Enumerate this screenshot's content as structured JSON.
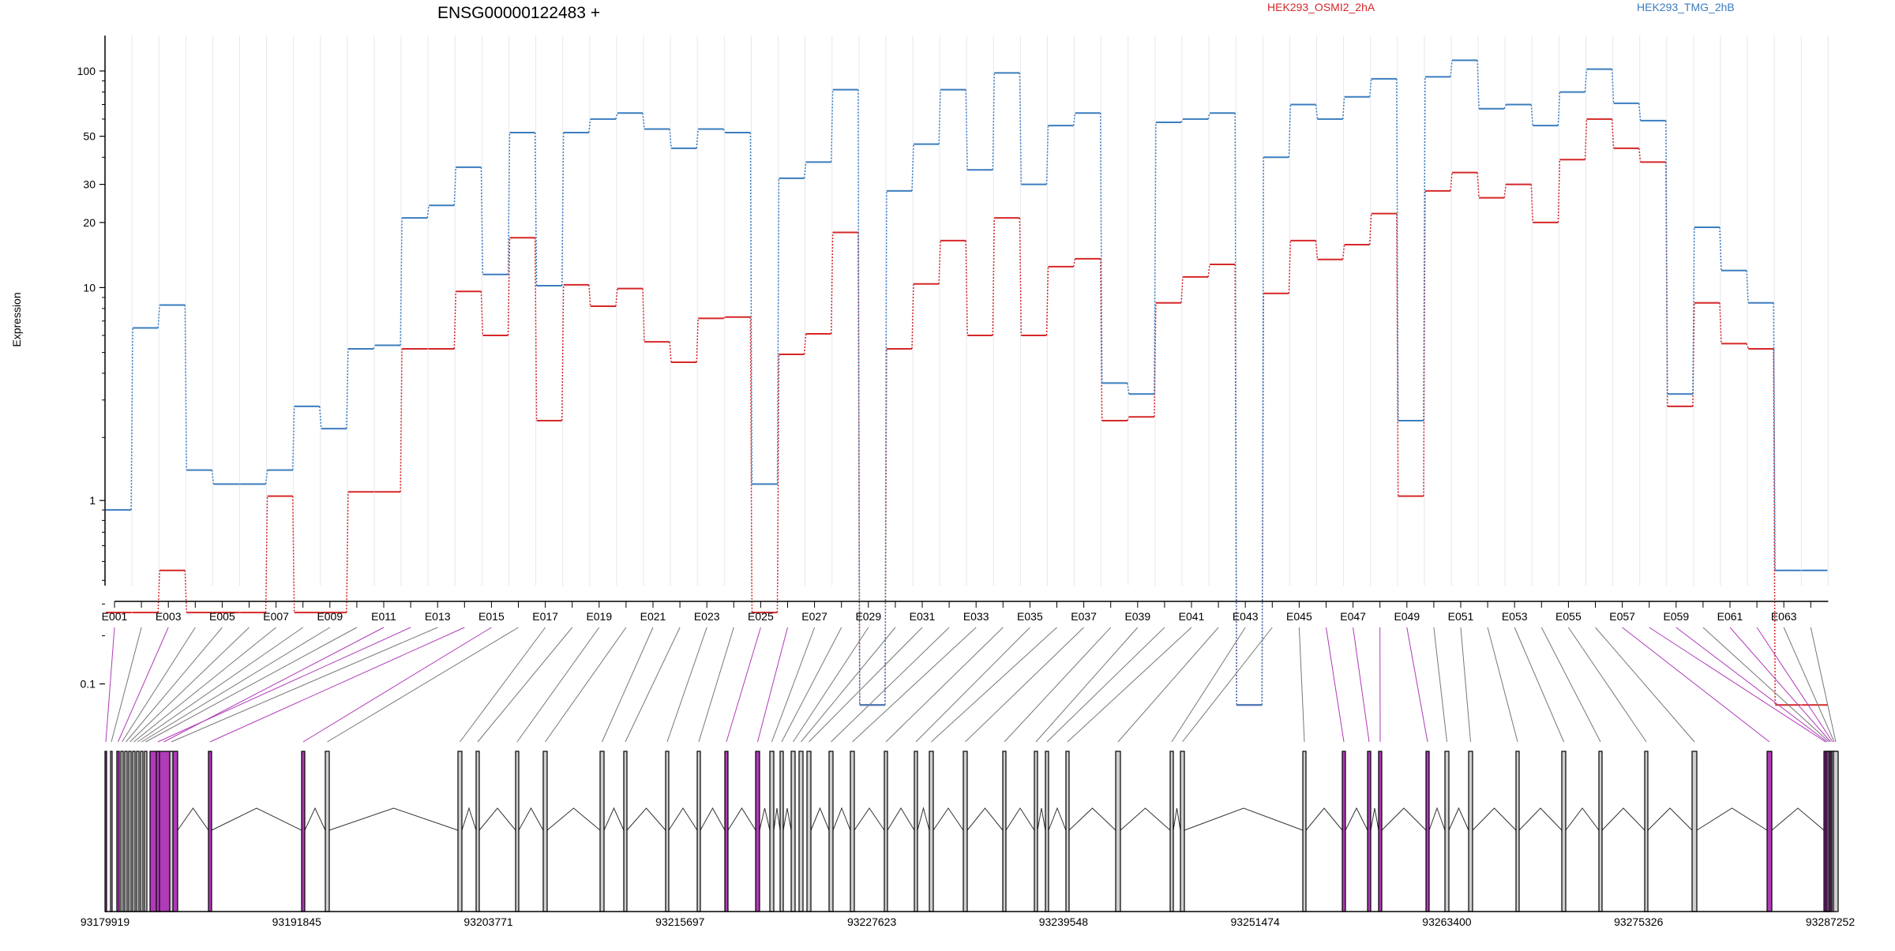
{
  "title": "ENSG00000122483 +",
  "legend": [
    {
      "name": "HEK293_OSMI2_2hA",
      "color": "#d62728"
    },
    {
      "name": "HEK293_TMG_2hB",
      "color": "#3a7dbf"
    }
  ],
  "colors": {
    "highlight": "#b03ab8",
    "connector": "#777777",
    "axis": "#000000",
    "grid": "#e6e6f0"
  },
  "chart_data": {
    "type": "line",
    "ylabel": "Expression",
    "y_scale": "log",
    "ylim": [
      0.07,
      130
    ],
    "y_ticks": [
      0.1,
      1,
      10,
      20,
      30,
      50,
      100
    ],
    "y_tick_labels": [
      "0.1",
      "1",
      "10",
      "20",
      "30",
      "50",
      "100"
    ],
    "exon_labels": [
      "E001",
      "E003",
      "E005",
      "E007",
      "E009",
      "E011",
      "E013",
      "E015",
      "E017",
      "E019",
      "E021",
      "E023",
      "E025",
      "E027",
      "E029",
      "E031",
      "E033",
      "E035",
      "E037",
      "E039",
      "E041",
      "E043",
      "E045",
      "E047",
      "E049",
      "E051",
      "E053",
      "E055",
      "E057",
      "E059",
      "E061",
      "E063"
    ],
    "series": [
      {
        "name": "HEK293_OSMI2_2hA",
        "values": [
          0.27,
          0.27,
          0.45,
          0.27,
          0.27,
          0.27,
          1.05,
          0.27,
          0.27,
          1.1,
          1.1,
          5.2,
          5.2,
          9.6,
          6.0,
          17.0,
          2.4,
          10.3,
          8.2,
          9.9,
          5.6,
          4.5,
          7.2,
          7.3,
          0.27,
          4.9,
          6.1,
          18.0,
          0.07,
          5.2,
          10.4,
          16.5,
          6.0,
          21.0,
          6.0,
          12.5,
          13.6,
          2.4,
          2.5,
          8.5,
          11.2,
          12.8,
          0.07,
          9.4,
          16.5,
          13.5,
          15.8,
          22.0,
          1.05,
          28.0,
          34.0,
          26.0,
          30.0,
          20.0,
          39.0,
          60.0,
          44.0,
          38.0,
          2.8,
          8.5,
          5.5,
          5.2,
          0.07,
          0.07
        ]
      },
      {
        "name": "HEK293_TMG_2hB",
        "values": [
          0.9,
          6.5,
          8.3,
          1.4,
          1.2,
          1.2,
          1.4,
          2.8,
          2.2,
          5.2,
          5.4,
          21.0,
          24.0,
          36.0,
          11.5,
          52.0,
          10.2,
          52.0,
          60.0,
          64.0,
          54.0,
          44.0,
          54.0,
          52.0,
          1.2,
          32.0,
          38.0,
          82.0,
          0.07,
          28.0,
          46.0,
          82.0,
          35.0,
          98.0,
          30.0,
          56.0,
          64.0,
          3.6,
          3.2,
          58.0,
          60.0,
          64.0,
          0.07,
          40.0,
          70.0,
          60.0,
          76.0,
          92.0,
          2.4,
          94.0,
          112.0,
          67.0,
          70.0,
          56.0,
          80.0,
          102.0,
          71.0,
          59.0,
          3.2,
          19.0,
          12.0,
          8.5,
          0.45,
          0.45
        ]
      }
    ],
    "genomic_axis_labels": [
      "93179919",
      "93191845",
      "93203771",
      "93215697",
      "93227623",
      "93239548",
      "93251474",
      "93263400",
      "93275326",
      "93287252"
    ],
    "highlighted_exons": [
      "E001",
      "E003",
      "E011",
      "E012",
      "E014",
      "E015",
      "E025",
      "E026",
      "E046",
      "E047",
      "E048",
      "E049",
      "E057",
      "E058",
      "E059",
      "E061",
      "E062"
    ]
  }
}
